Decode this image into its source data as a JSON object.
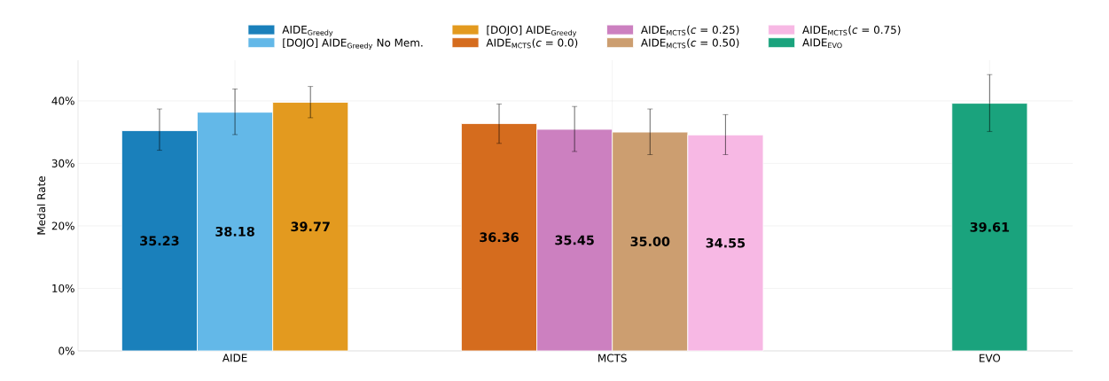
{
  "chart_data": {
    "type": "bar",
    "ylabel": "Medal Rate",
    "categories": [
      "AIDE",
      "MCTS",
      "EVO"
    ],
    "series": [
      {
        "name": "AIDE$_{Greedy}$",
        "color": "#1a80bb",
        "values": [
          35.23,
          null,
          null
        ],
        "errors": [
          [
            32.1,
            38.7
          ],
          null,
          null
        ],
        "value_labels": [
          "35.23",
          null,
          null
        ]
      },
      {
        "name": "[DOJO] AIDE$_{Greedy}$ No Mem.",
        "color": "#63b8e8",
        "values": [
          38.18,
          null,
          null
        ],
        "errors": [
          [
            34.6,
            41.9
          ],
          null,
          null
        ],
        "value_labels": [
          "38.18",
          null,
          null
        ]
      },
      {
        "name": "[DOJO] AIDE$_{Greedy}$",
        "color": "#e39a1f",
        "values": [
          39.77,
          null,
          null
        ],
        "errors": [
          [
            37.3,
            42.3
          ],
          null,
          null
        ],
        "value_labels": [
          "39.77",
          null,
          null
        ]
      },
      {
        "name": "AIDE$_{MCTS}$(*c* = 0.0)",
        "color": "#d56c1e",
        "values": [
          null,
          36.36,
          null
        ],
        "errors": [
          null,
          [
            33.2,
            39.5
          ],
          null
        ],
        "value_labels": [
          null,
          "36.36",
          null
        ]
      },
      {
        "name": "AIDE$_{MCTS}$(*c* = 0.25)",
        "color": "#cc80c0",
        "values": [
          null,
          35.45,
          null
        ],
        "errors": [
          null,
          [
            31.9,
            39.1
          ],
          null
        ],
        "value_labels": [
          null,
          "35.45",
          null
        ]
      },
      {
        "name": "AIDE$_{MCTS}$(*c* = 0.50)",
        "color": "#cc9e70",
        "values": [
          null,
          35.0,
          null
        ],
        "errors": [
          null,
          [
            31.4,
            38.7
          ],
          null
        ],
        "value_labels": [
          null,
          "35.00",
          null
        ]
      },
      {
        "name": "AIDE$_{MCTS}$(*c* = 0.75)",
        "color": "#f7b8e4",
        "values": [
          null,
          34.55,
          null
        ],
        "errors": [
          null,
          [
            31.4,
            37.8
          ],
          null
        ],
        "value_labels": [
          null,
          "34.55",
          null
        ]
      },
      {
        "name": "AIDE$_{EVO}$",
        "color": "#1aa37d",
        "values": [
          null,
          null,
          39.61
        ],
        "errors": [
          null,
          null,
          [
            35.1,
            44.2
          ]
        ],
        "value_labels": [
          null,
          null,
          "39.61"
        ]
      }
    ],
    "ylim": [
      0,
      46.5
    ],
    "yticks": [
      {
        "value": 0,
        "label": "0%"
      },
      {
        "value": 10,
        "label": "10%"
      },
      {
        "value": 20,
        "label": "20%"
      },
      {
        "value": 30,
        "label": "30%"
      },
      {
        "value": 40,
        "label": "40%"
      }
    ],
    "grid": true,
    "legend": "top"
  }
}
